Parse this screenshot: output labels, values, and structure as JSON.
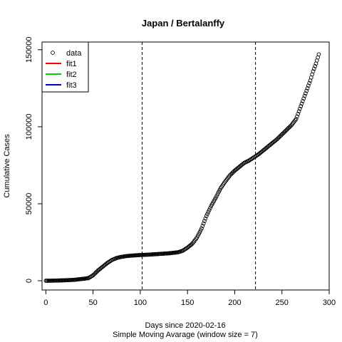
{
  "chart_data": {
    "type": "scatter",
    "title": "Japan / Bertalanffy",
    "xlabel": "Days since 2020-02-16",
    "xlabel2": "Simple Moving Avarage (window size = 7)",
    "ylabel": "Cumulative Cases",
    "xlim": [
      -4,
      300
    ],
    "ylim": [
      -6000,
      155000
    ],
    "x_ticks": [
      0,
      50,
      100,
      150,
      200,
      250,
      300
    ],
    "x_tick_labels": [
      "0",
      "50",
      "100",
      "150",
      "200",
      "250",
      "300"
    ],
    "y_ticks": [
      0,
      50000,
      100000,
      150000
    ],
    "y_tick_labels": [
      "0",
      "50000",
      "100000",
      "150000"
    ],
    "vlines": [
      102,
      222
    ],
    "legend": {
      "position": "top-left",
      "entries": [
        {
          "label": "data",
          "kind": "point",
          "color": "#000000"
        },
        {
          "label": "fit1",
          "kind": "line",
          "color": "#ff0000"
        },
        {
          "label": "fit2",
          "kind": "line",
          "color": "#00cc00"
        },
        {
          "label": "fit3",
          "kind": "line",
          "color": "#0000cc"
        }
      ]
    },
    "series": [
      {
        "name": "data",
        "x": [
          0,
          10,
          20,
          30,
          40,
          45,
          50,
          55,
          60,
          65,
          70,
          75,
          80,
          85,
          90,
          100,
          110,
          120,
          130,
          140,
          145,
          150,
          155,
          160,
          165,
          170,
          175,
          180,
          185,
          190,
          195,
          200,
          205,
          210,
          215,
          220,
          225,
          230,
          235,
          240,
          245,
          250,
          255,
          260,
          265,
          268,
          271,
          274,
          277,
          280,
          283,
          286,
          289
        ],
        "y": [
          0,
          100,
          300,
          600,
          1300,
          1700,
          3500,
          6500,
          9000,
          11500,
          13500,
          14800,
          15500,
          16000,
          16300,
          16700,
          17000,
          17400,
          17800,
          18500,
          19500,
          21500,
          24000,
          28000,
          34000,
          42000,
          48500,
          54000,
          60000,
          64500,
          68500,
          71500,
          74000,
          76500,
          78000,
          80000,
          82000,
          84500,
          87000,
          89500,
          92000,
          95000,
          98000,
          101000,
          105000,
          110000,
          115000,
          120000,
          125000,
          130000,
          136000,
          141000,
          147000
        ]
      }
    ]
  }
}
